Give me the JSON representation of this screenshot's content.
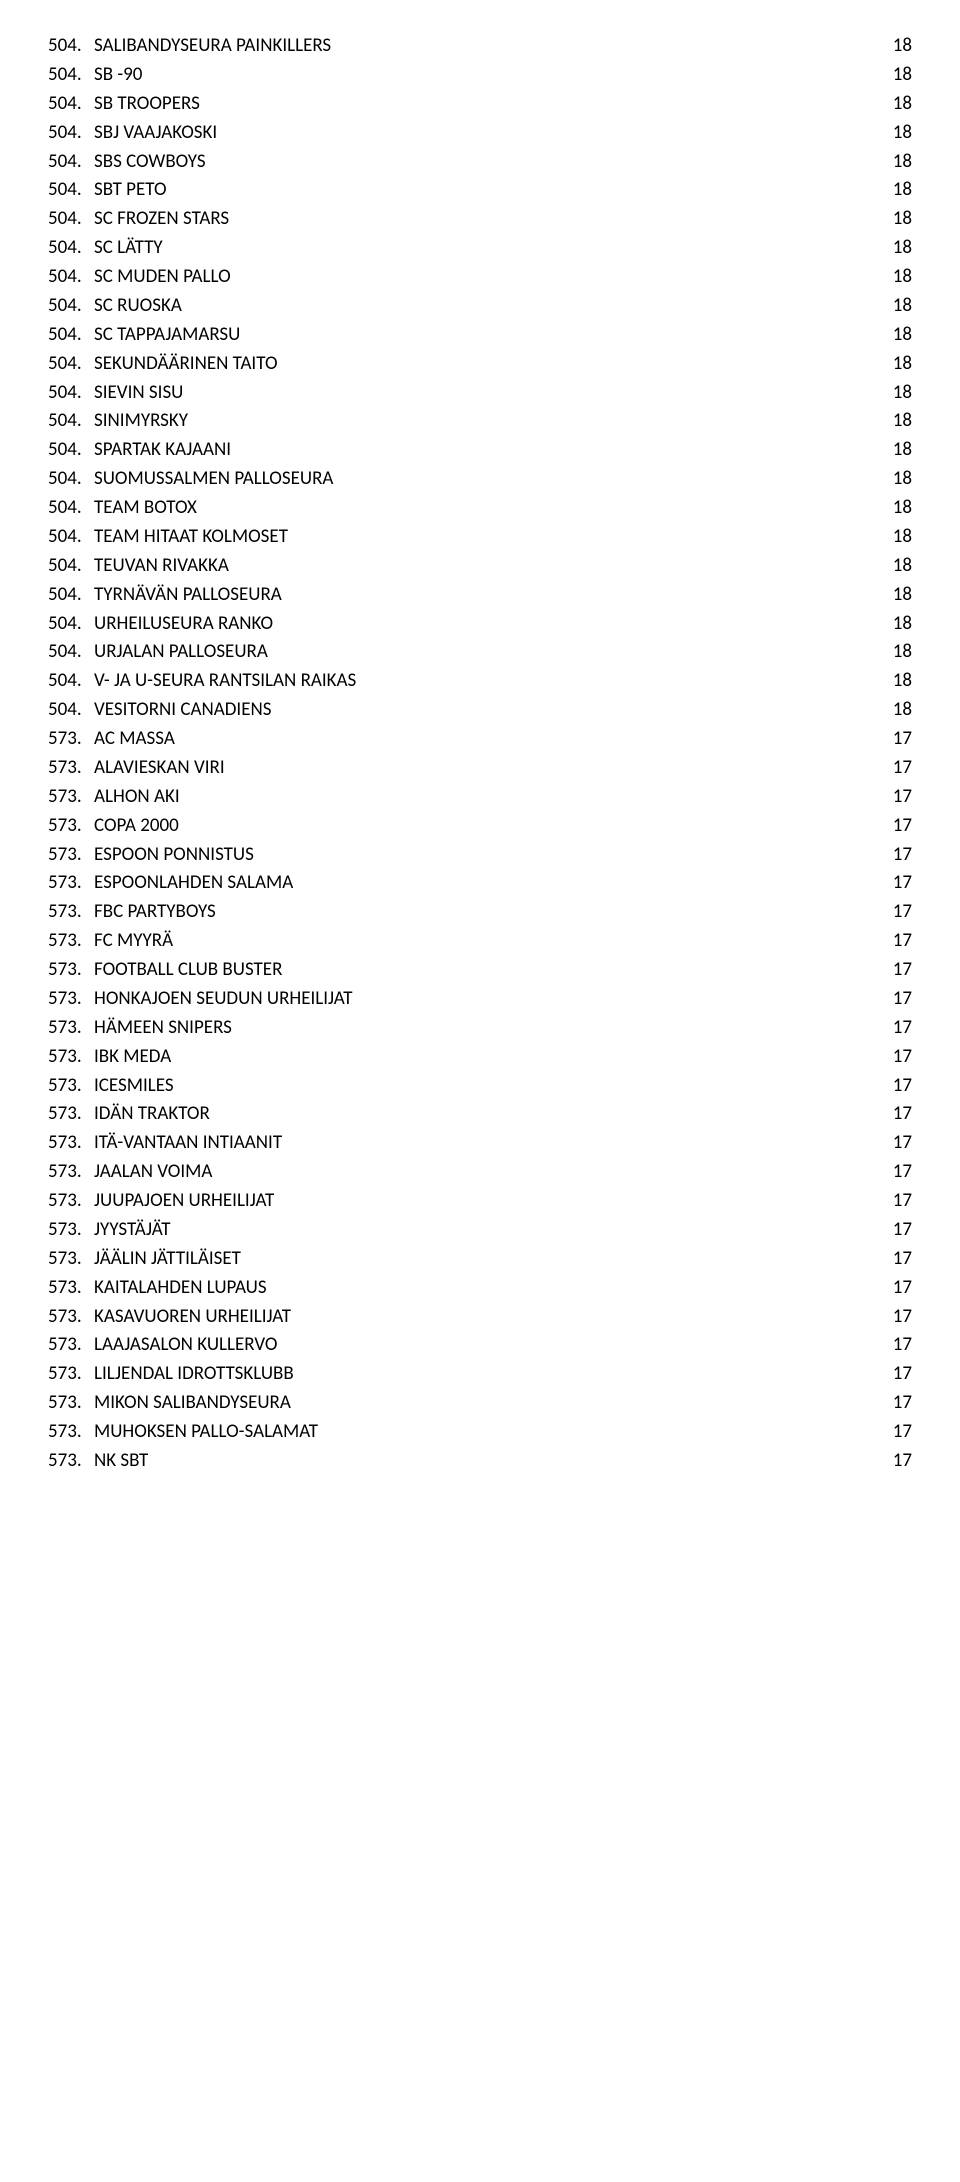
{
  "rows": [
    {
      "rank": "504.",
      "name": "SALIBANDYSEURA PAINKILLERS",
      "value": "18"
    },
    {
      "rank": "504.",
      "name": "SB -90",
      "value": "18"
    },
    {
      "rank": "504.",
      "name": "SB TROOPERS",
      "value": "18"
    },
    {
      "rank": "504.",
      "name": "SBJ VAAJAKOSKI",
      "value": "18"
    },
    {
      "rank": "504.",
      "name": "SBS COWBOYS",
      "value": "18"
    },
    {
      "rank": "504.",
      "name": "SBT PETO",
      "value": "18"
    },
    {
      "rank": "504.",
      "name": "SC FROZEN STARS",
      "value": "18"
    },
    {
      "rank": "504.",
      "name": "SC LÄTTY",
      "value": "18"
    },
    {
      "rank": "504.",
      "name": "SC MUDEN PALLO",
      "value": "18"
    },
    {
      "rank": "504.",
      "name": "SC RUOSKA",
      "value": "18"
    },
    {
      "rank": "504.",
      "name": "SC TAPPAJAMARSU",
      "value": "18"
    },
    {
      "rank": "504.",
      "name": "SEKUNDÄÄRINEN TAITO",
      "value": "18"
    },
    {
      "rank": "504.",
      "name": "SIEVIN SISU",
      "value": "18"
    },
    {
      "rank": "504.",
      "name": "SINIMYRSKY",
      "value": "18"
    },
    {
      "rank": "504.",
      "name": "SPARTAK KAJAANI",
      "value": "18"
    },
    {
      "rank": "504.",
      "name": "SUOMUSSALMEN PALLOSEURA",
      "value": "18"
    },
    {
      "rank": "504.",
      "name": "TEAM BOTOX",
      "value": "18"
    },
    {
      "rank": "504.",
      "name": "TEAM HITAAT KOLMOSET",
      "value": "18"
    },
    {
      "rank": "504.",
      "name": "TEUVAN RIVAKKA",
      "value": "18"
    },
    {
      "rank": "504.",
      "name": "TYRNÄVÄN PALLOSEURA",
      "value": "18"
    },
    {
      "rank": "504.",
      "name": "URHEILUSEURA RANKO",
      "value": "18"
    },
    {
      "rank": "504.",
      "name": "URJALAN PALLOSEURA",
      "value": "18"
    },
    {
      "rank": "504.",
      "name": "V- JA U-SEURA RANTSILAN RAIKAS",
      "value": "18"
    },
    {
      "rank": "504.",
      "name": "VESITORNI CANADIENS",
      "value": "18"
    },
    {
      "rank": "573.",
      "name": "AC MASSA",
      "value": "17"
    },
    {
      "rank": "573.",
      "name": "ALAVIESKAN VIRI",
      "value": "17"
    },
    {
      "rank": "573.",
      "name": "ALHON AKI",
      "value": "17"
    },
    {
      "rank": "573.",
      "name": "COPA 2000",
      "value": "17"
    },
    {
      "rank": "573.",
      "name": "ESPOON PONNISTUS",
      "value": "17"
    },
    {
      "rank": "573.",
      "name": "ESPOONLAHDEN SALAMA",
      "value": "17"
    },
    {
      "rank": "573.",
      "name": "FBC PARTYBOYS",
      "value": "17"
    },
    {
      "rank": "573.",
      "name": "FC MYYRÄ",
      "value": "17"
    },
    {
      "rank": "573.",
      "name": "FOOTBALL CLUB BUSTER",
      "value": "17"
    },
    {
      "rank": "573.",
      "name": "HONKAJOEN SEUDUN URHEILIJAT",
      "value": "17"
    },
    {
      "rank": "573.",
      "name": "HÄMEEN SNIPERS",
      "value": "17"
    },
    {
      "rank": "573.",
      "name": "IBK MEDA",
      "value": "17"
    },
    {
      "rank": "573.",
      "name": "ICESMILES",
      "value": "17"
    },
    {
      "rank": "573.",
      "name": "IDÄN TRAKTOR",
      "value": "17"
    },
    {
      "rank": "573.",
      "name": "ITÄ-VANTAAN INTIAANIT",
      "value": "17"
    },
    {
      "rank": "573.",
      "name": "JAALAN VOIMA",
      "value": "17"
    },
    {
      "rank": "573.",
      "name": "JUUPAJOEN URHEILIJAT",
      "value": "17"
    },
    {
      "rank": "573.",
      "name": "JYYSTÄJÄT",
      "value": "17"
    },
    {
      "rank": "573.",
      "name": "JÄÄLIN JÄTTILÄISET",
      "value": "17"
    },
    {
      "rank": "573.",
      "name": "KAITALAHDEN LUPAUS",
      "value": "17"
    },
    {
      "rank": "573.",
      "name": "KASAVUOREN URHEILIJAT",
      "value": "17"
    },
    {
      "rank": "573.",
      "name": "LAAJASALON KULLERVO",
      "value": "17"
    },
    {
      "rank": "573.",
      "name": "LILJENDAL IDROTTSKLUBB",
      "value": "17"
    },
    {
      "rank": "573.",
      "name": "MIKON SALIBANDYSEURA",
      "value": "17"
    },
    {
      "rank": "573.",
      "name": "MUHOKSEN PALLO-SALAMAT",
      "value": "17"
    },
    {
      "rank": "573.",
      "name": "NK SBT",
      "value": "17"
    }
  ]
}
